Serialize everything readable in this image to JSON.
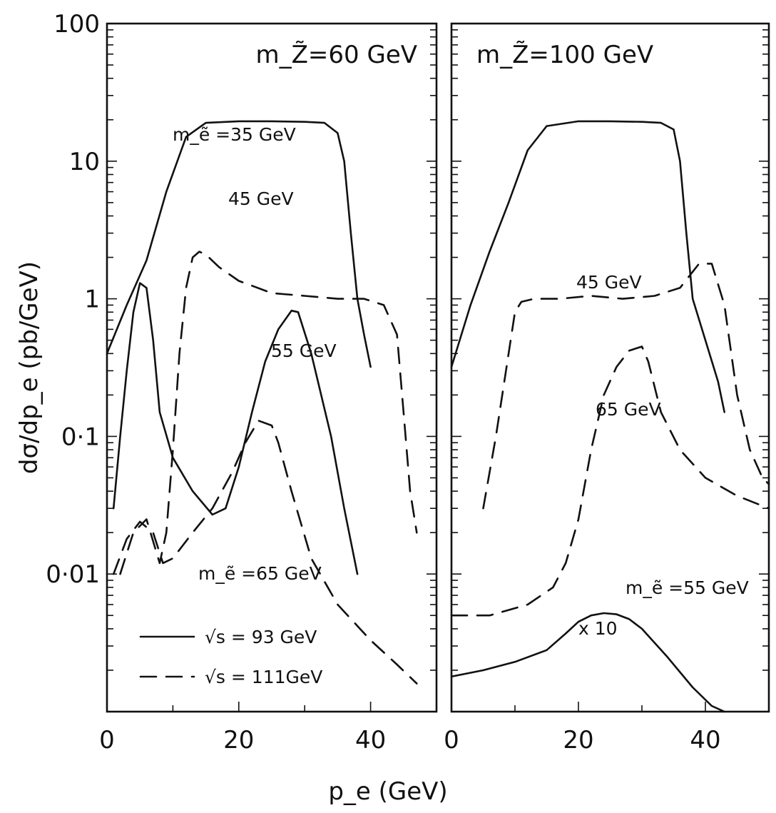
{
  "chart_data": {
    "type": "line",
    "xlabel": "p_e (GeV)",
    "ylabel": "dσ/dp_e (pb/GeV)",
    "xlim": [
      0,
      50
    ],
    "ylim": [
      0.001,
      100
    ],
    "y_scale": "log",
    "x_ticks": [
      "0",
      "20",
      "40"
    ],
    "y_ticks": [
      "100",
      "10",
      "1",
      "0·1",
      "0·01"
    ],
    "y_tick_values": [
      100,
      10,
      1,
      0.1,
      0.01
    ],
    "x_tick_values": [
      0,
      20,
      40
    ],
    "legend": [
      {
        "label": "√s = 93 GeV",
        "style": "solid"
      },
      {
        "label": "√s = 111GeV",
        "style": "dashed"
      }
    ],
    "panels": [
      {
        "title": "m_Z̃=60 GeV",
        "series": [
          {
            "label": "m_ẽ =35 GeV",
            "style": "solid",
            "x": [
              0,
              3,
              6,
              9,
              12,
              15,
              20,
              25,
              30,
              33,
              35,
              36,
              37,
              38,
              39,
              40
            ],
            "y": [
              0.4,
              0.9,
              1.9,
              6,
              15,
              19,
              19.5,
              19.5,
              19.3,
              19,
              16,
              10,
              3,
              1,
              0.55,
              0.32
            ]
          },
          {
            "label": "45 GeV",
            "style": "dashed",
            "x": [
              2,
              4,
              6,
              8,
              9,
              10,
              11,
              12,
              13,
              14,
              15,
              17,
              20,
              25,
              30,
              35,
              39,
              42,
              44,
              45,
              46,
              47
            ],
            "y": [
              0.01,
              0.02,
              0.025,
              0.012,
              0.02,
              0.08,
              0.4,
              1.2,
              2.0,
              2.2,
              2.1,
              1.7,
              1.35,
              1.1,
              1.05,
              1.0,
              1.0,
              0.9,
              0.55,
              0.15,
              0.04,
              0.02
            ]
          },
          {
            "label": "55 GeV",
            "style": "solid",
            "x": [
              1,
              2,
              3,
              4,
              5,
              6,
              7,
              8,
              10,
              13,
              16,
              18,
              20,
              22,
              24,
              26,
              28,
              29,
              31,
              34,
              36,
              38
            ],
            "y": [
              0.03,
              0.1,
              0.3,
              0.8,
              1.3,
              1.2,
              0.5,
              0.15,
              0.07,
              0.04,
              0.027,
              0.03,
              0.06,
              0.15,
              0.35,
              0.6,
              0.82,
              0.8,
              0.4,
              0.1,
              0.03,
              0.01
            ]
          },
          {
            "label": "m_ẽ =65 GeV",
            "style": "dashed",
            "x": [
              1,
              3,
              5,
              7,
              8.5,
              10,
              13,
              16,
              19,
              21,
              23,
              25,
              26,
              28,
              31,
              35,
              40,
              44,
              47
            ],
            "y": [
              0.01,
              0.018,
              0.024,
              0.02,
              0.012,
              0.013,
              0.02,
              0.03,
              0.055,
              0.09,
              0.13,
              0.12,
              0.09,
              0.04,
              0.013,
              0.006,
              0.0033,
              0.0022,
              0.0016
            ]
          }
        ],
        "annotations": [
          "m_ẽ =35 GeV",
          "45 GeV",
          "55 GeV",
          "m_ẽ =65 GeV"
        ]
      },
      {
        "title": "m_Z̃=100 GeV",
        "series": [
          {
            "label": "m_ẽ =35 GeV",
            "style": "solid",
            "x": [
              0,
              3,
              6,
              9,
              12,
              15,
              20,
              25,
              30,
              33,
              35,
              36,
              37,
              38,
              40,
              42,
              43
            ],
            "y": [
              0.32,
              0.9,
              2.2,
              5,
              12,
              18,
              19.5,
              19.5,
              19.3,
              19,
              17,
              10,
              3,
              1,
              0.5,
              0.25,
              0.15
            ]
          },
          {
            "label": "45 GeV",
            "style": "dashed",
            "x": [
              5,
              7,
              9,
              10,
              11,
              13,
              17,
              22,
              27,
              32,
              36,
              39,
              41,
              43,
              45,
              47,
              49,
              50
            ],
            "y": [
              0.03,
              0.1,
              0.4,
              0.8,
              0.95,
              1.0,
              1.0,
              1.05,
              1.0,
              1.05,
              1.2,
              1.8,
              1.8,
              0.9,
              0.2,
              0.08,
              0.05,
              0.045
            ]
          },
          {
            "label": "65 GeV",
            "style": "dashed",
            "x": [
              0,
              6,
              12,
              16,
              18,
              20,
              22,
              24,
              26,
              28,
              30,
              31,
              33,
              36,
              40,
              45,
              50
            ],
            "y": [
              0.005,
              0.005,
              0.006,
              0.008,
              0.012,
              0.025,
              0.08,
              0.2,
              0.32,
              0.42,
              0.45,
              0.35,
              0.15,
              0.08,
              0.05,
              0.037,
              0.03
            ]
          },
          {
            "label": "m_ẽ =55 GeV",
            "note": "x 10",
            "style": "solid",
            "x": [
              0,
              5,
              10,
              15,
              18,
              20,
              22,
              24,
              26,
              28,
              30,
              34,
              38,
              41,
              43
            ],
            "y": [
              0.0018,
              0.002,
              0.0023,
              0.0028,
              0.0037,
              0.0045,
              0.005,
              0.0052,
              0.0051,
              0.0047,
              0.004,
              0.0025,
              0.0015,
              0.0011,
              0.001
            ]
          }
        ],
        "annotations": [
          "45 GeV",
          "65 GeV",
          "m_ẽ =55 GeV",
          "x 10"
        ]
      }
    ]
  }
}
